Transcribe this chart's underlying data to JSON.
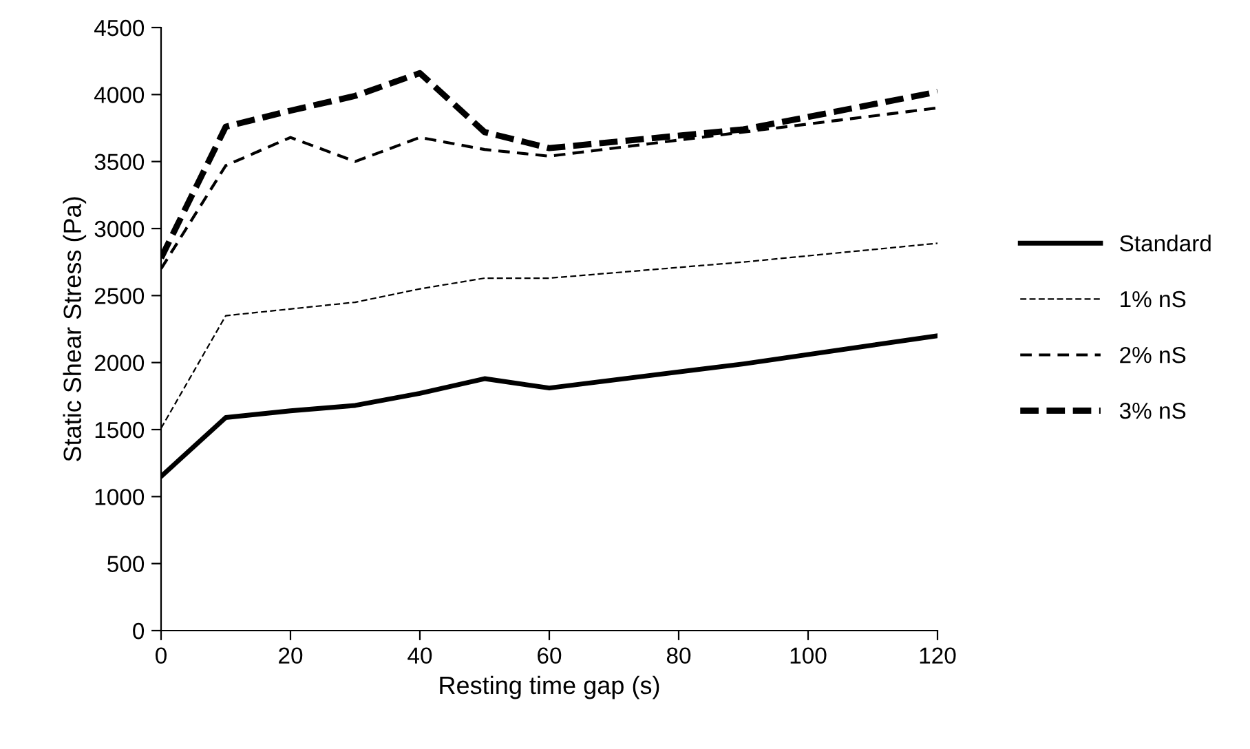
{
  "chart_data": {
    "type": "line",
    "xlabel": "Resting time gap (s)",
    "ylabel": "Static Shear Stress (Pa)",
    "x": [
      0,
      10,
      20,
      30,
      40,
      50,
      60,
      90,
      120
    ],
    "series": [
      {
        "name": "Standard",
        "color": "#000000",
        "line_style": "solid",
        "values": [
          1150,
          1590,
          1640,
          1680,
          1770,
          1880,
          1810,
          1990,
          2200
        ]
      },
      {
        "name": "1% nS",
        "color": "#000000",
        "line_style": "dashed",
        "values": [
          1510,
          2350,
          2400,
          2450,
          2550,
          2630,
          2630,
          2750,
          2890
        ]
      },
      {
        "name": "2% nS",
        "color": "#000000",
        "line_style": "dashed",
        "values": [
          2700,
          3470,
          3680,
          3500,
          3680,
          3590,
          3540,
          3720,
          3900
        ]
      },
      {
        "name": "3% nS",
        "color": "#000000",
        "line_style": "dashed",
        "values": [
          2780,
          3760,
          3880,
          3990,
          4160,
          3720,
          3600,
          3740,
          4020
        ]
      }
    ],
    "xlim": [
      0,
      120
    ],
    "xticks": [
      0,
      20,
      40,
      60,
      80,
      100,
      120
    ],
    "ylim": [
      0,
      4500
    ],
    "yticks": [
      0,
      500,
      1000,
      1500,
      2000,
      2500,
      3000,
      3500,
      4000,
      4500
    ],
    "grid": false,
    "legend": "right",
    "marker": "none"
  }
}
